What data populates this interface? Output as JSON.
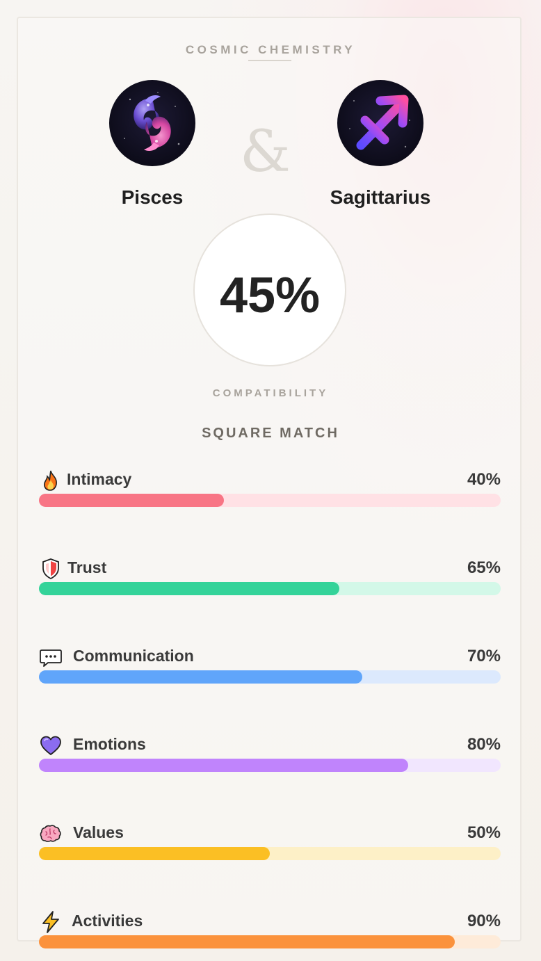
{
  "header": {
    "kicker": "COSMIC CHEMISTRY",
    "ampersand": "&"
  },
  "signs": {
    "left": {
      "name": "Pisces",
      "icon": "pisces-icon"
    },
    "right": {
      "name": "Sagittarius",
      "icon": "sagittarius-icon"
    }
  },
  "score": {
    "value": "45%",
    "label": "COMPATIBILITY"
  },
  "section": {
    "title": "SQUARE MATCH"
  },
  "metrics": [
    {
      "label": "Intimacy",
      "value": "40%",
      "fraction": 0.4,
      "icon": "fire-icon",
      "fill_color": "#f87585",
      "track_color": "#ffe1e5"
    },
    {
      "label": "Trust",
      "value": "65%",
      "fraction": 0.65,
      "icon": "shield-icon",
      "fill_color": "#34d399",
      "track_color": "#d3f8e8"
    },
    {
      "label": "Communication",
      "value": "70%",
      "fraction": 0.7,
      "icon": "speech-bubble-icon",
      "fill_color": "#60a5fa",
      "track_color": "#dce9fd"
    },
    {
      "label": "Emotions",
      "value": "80%",
      "fraction": 0.8,
      "icon": "heart-icon",
      "fill_color": "#c084fc",
      "track_color": "#f1e6fe"
    },
    {
      "label": "Values",
      "value": "50%",
      "fraction": 0.5,
      "icon": "brain-icon",
      "fill_color": "#fbbf24",
      "track_color": "#fdf0c7"
    },
    {
      "label": "Activities",
      "value": "90%",
      "fraction": 0.9,
      "icon": "lightning-icon",
      "fill_color": "#fb923c",
      "track_color": "#feebd9"
    }
  ]
}
